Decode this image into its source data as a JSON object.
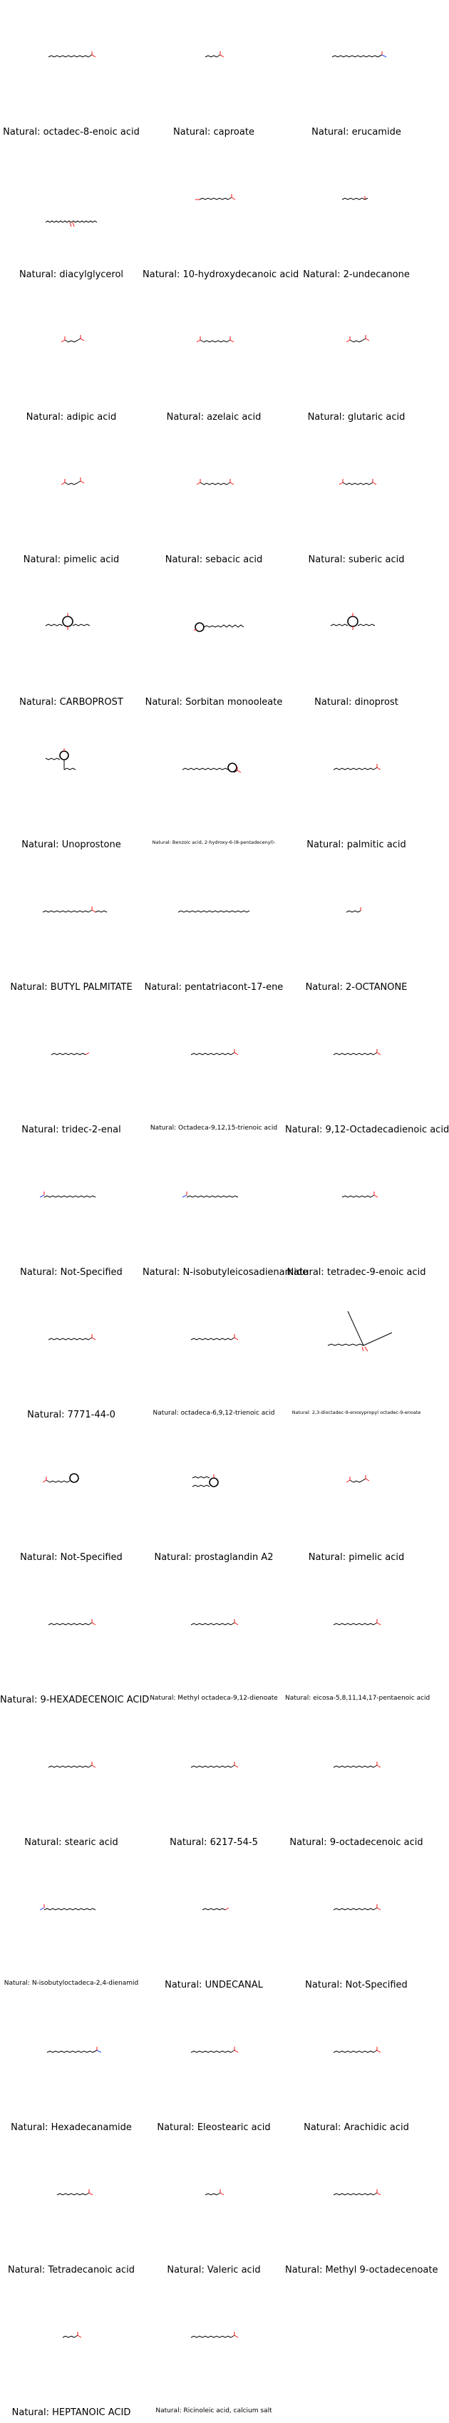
{
  "label_prefix": "Natural: ",
  "colors": {
    "bond": "#000000",
    "oxygen": "#ff0d0d",
    "nitrogen": "#3050f8"
  },
  "molecules": [
    {
      "name": "octadec-8-enoic acid",
      "skeleton": "chain-acid-long"
    },
    {
      "name": "caproate",
      "skeleton": "chain-acid-short"
    },
    {
      "name": "erucamide",
      "skeleton": "chain-amide-long"
    },
    {
      "name": "diacylglycerol",
      "skeleton": "v-shape-ester"
    },
    {
      "name": "10-hydroxydecanoic acid",
      "skeleton": "chain-diol-mid"
    },
    {
      "name": "2-undecanone",
      "skeleton": "chain-ketone-short"
    },
    {
      "name": "adipic acid",
      "skeleton": "diacid-short"
    },
    {
      "name": "azelaic acid",
      "skeleton": "diacid-mid"
    },
    {
      "name": "glutaric acid",
      "skeleton": "diacid-short"
    },
    {
      "name": "pimelic acid",
      "skeleton": "diacid-short"
    },
    {
      "name": "sebacic acid",
      "skeleton": "diacid-mid"
    },
    {
      "name": "suberic acid",
      "skeleton": "diacid-mid"
    },
    {
      "name": "CARBOPROST",
      "skeleton": "prostaglandin"
    },
    {
      "name": "Sorbitan monooleate",
      "skeleton": "sorbitan"
    },
    {
      "name": "dinoprost",
      "skeleton": "prostaglandin"
    },
    {
      "name": "Unoprostone",
      "skeleton": "prostaglandin-tall"
    },
    {
      "name": "Benzoic acid, 2-hydroxy-6-(8-pentadecenyl)-",
      "skeleton": "chain-aryl-acid"
    },
    {
      "name": "palmitic acid",
      "skeleton": "chain-acid-long"
    },
    {
      "name": "BUTYL PALMITATE",
      "skeleton": "chain-ester-long"
    },
    {
      "name": "pentatriacont-17-ene",
      "skeleton": "chain-alkene-xlong"
    },
    {
      "name": "2-OCTANONE",
      "skeleton": "chain-ketone-tiny"
    },
    {
      "name": "tridec-2-enal",
      "skeleton": "chain-aldehyde"
    },
    {
      "name": "Octadeca-9,12,15-trienoic acid",
      "skeleton": "chain-acid-long"
    },
    {
      "name": "9,12-Octadecadienoic acid",
      "skeleton": "chain-acid-long"
    },
    {
      "name": "Not-Specified",
      "skeleton": "chain-amide-left"
    },
    {
      "name": "N-isobutyleicosadienamide",
      "skeleton": "chain-amide-left"
    },
    {
      "name": "tetradec-9-enoic acid",
      "skeleton": "chain-acid-mid"
    },
    {
      "name": "7771-44-0",
      "skeleton": "chain-acid-long"
    },
    {
      "name": "octadeca-6,9,12-trienoic acid",
      "skeleton": "chain-acid-long"
    },
    {
      "name": "2,3-dioctadec-9-enoxypropyl octadec-9-enoate",
      "skeleton": "triglyceride"
    },
    {
      "name": "Not-Specified",
      "skeleton": "chain-ring-acid"
    },
    {
      "name": "prostaglandin A2",
      "skeleton": "prostaglandin-a2"
    },
    {
      "name": "pimelic acid",
      "skeleton": "diacid-short"
    },
    {
      "name": "9-HEXADECENOIC ACID",
      "skeleton": "chain-acid-long"
    },
    {
      "name": "Methyl octadeca-9,12-dienoate",
      "skeleton": "chain-acid-long"
    },
    {
      "name": "eicosa-5,8,11,14,17-pentaenoic acid",
      "skeleton": "chain-acid-long"
    },
    {
      "name": "stearic acid",
      "skeleton": "chain-acid-long"
    },
    {
      "name": "6217-54-5",
      "skeleton": "chain-acid-long"
    },
    {
      "name": "9-octadecenoic acid",
      "skeleton": "chain-acid-long"
    },
    {
      "name": "N-isobutyloctadeca-2,4-dienamid",
      "skeleton": "chain-amide-left"
    },
    {
      "name": "UNDECANAL",
      "skeleton": "chain-aldehyde-short"
    },
    {
      "name": "Not-Specified",
      "skeleton": "chain-acid-long"
    },
    {
      "name": "Hexadecanamide",
      "skeleton": "chain-amide-long"
    },
    {
      "name": "Eleostearic acid",
      "skeleton": "chain-acid-long"
    },
    {
      "name": "Arachidic acid",
      "skeleton": "chain-acid-long"
    },
    {
      "name": "Tetradecanoic acid",
      "skeleton": "chain-acid-mid"
    },
    {
      "name": "Valeric acid",
      "skeleton": "chain-acid-short"
    },
    {
      "name": "Methyl 9-octadecenoate",
      "skeleton": "chain-acid-long"
    },
    {
      "name": "HEPTANOIC ACID",
      "skeleton": "chain-acid-short"
    },
    {
      "name": "Ricinoleic acid, calcium salt",
      "skeleton": "chain-acid-long"
    }
  ]
}
